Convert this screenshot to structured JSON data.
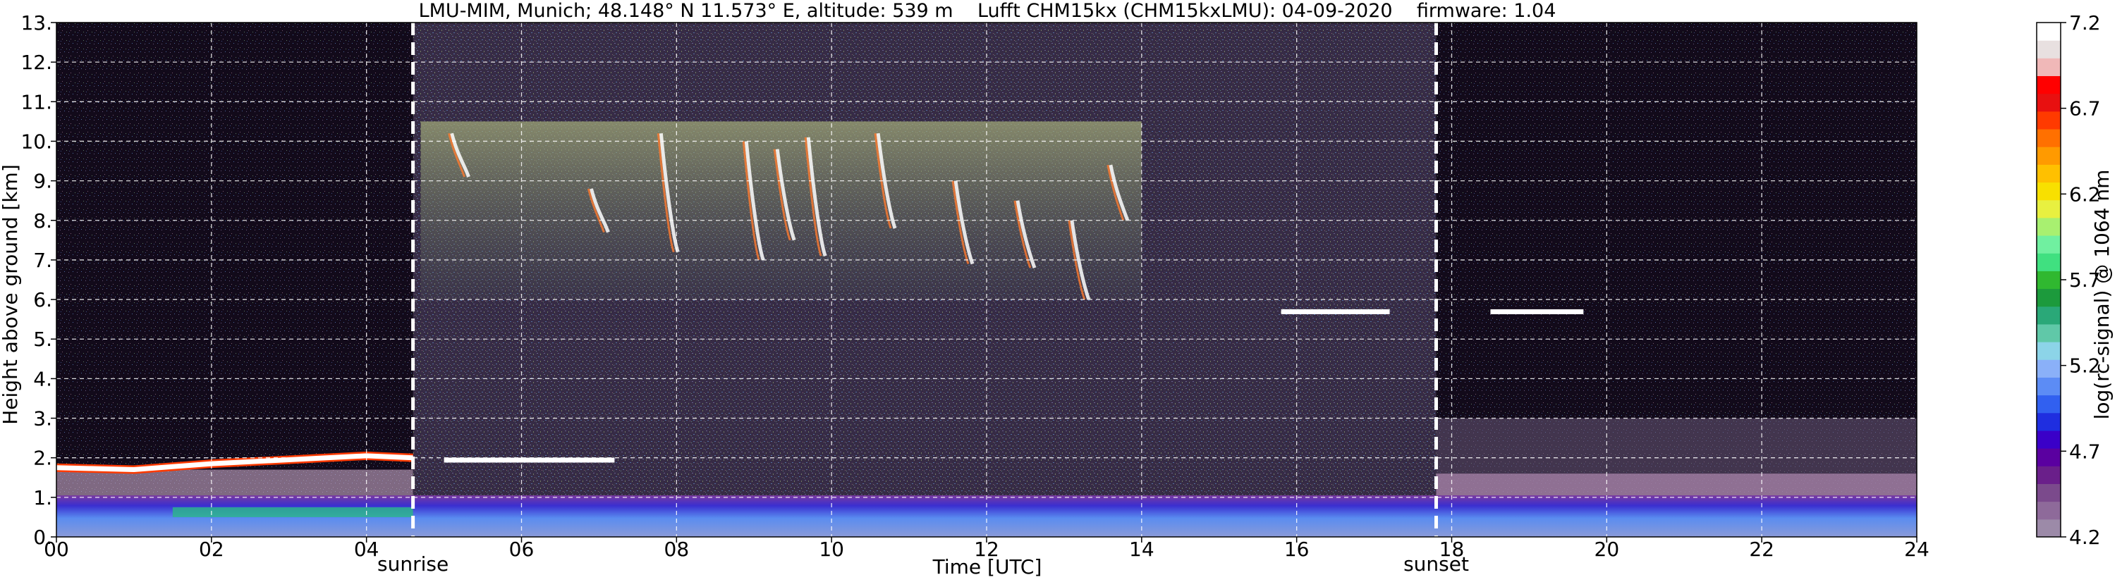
{
  "chart_data": {
    "type": "heatmap",
    "title": "LMU-MIM, Munich; 48.148° N 11.573° E, altitude: 539 m    Lufft CHM15kx (CHM15kxLMU): 04-09-2020    firmware: 1.04",
    "xlabel": "Time [UTC]",
    "ylabel": "Height above ground [km]",
    "xlim": [
      0,
      24
    ],
    "ylim": [
      0,
      13
    ],
    "x_ticks": [
      0,
      2,
      4,
      6,
      8,
      10,
      12,
      14,
      16,
      18,
      20,
      22,
      24
    ],
    "x_tick_labels": [
      "00",
      "02",
      "04",
      "06",
      "08",
      "10",
      "12",
      "14",
      "16",
      "18",
      "20",
      "22",
      "24"
    ],
    "y_ticks": [
      0,
      1,
      2,
      3,
      4,
      5,
      6,
      7,
      8,
      9,
      10,
      11,
      12,
      13
    ],
    "y_tick_labels": [
      "0.",
      "1.",
      "2.",
      "3.",
      "4.",
      "5.",
      "6.",
      "7.",
      "8.",
      "9.",
      "10.",
      "11.",
      "12.",
      "13."
    ],
    "grid": true,
    "colorbar": {
      "label": "log(rc-signal) @ 1064 nm",
      "range": [
        4.2,
        7.2
      ],
      "ticks": [
        4.2,
        4.7,
        5.2,
        5.7,
        6.2,
        6.7,
        7.2
      ],
      "tick_labels": [
        "4.2",
        "4.7",
        "5.2",
        "5.7",
        "6.2",
        "6.7",
        "7.2"
      ],
      "colors": [
        "#9c8aa8",
        "#8e6a9a",
        "#7b4a8c",
        "#6a1f8a",
        "#5a00a0",
        "#3a00c8",
        "#1f2ee0",
        "#3160f0",
        "#5c8cf5",
        "#8ab0f8",
        "#8cd4e8",
        "#60c8a8",
        "#2aa878",
        "#1c9a3c",
        "#30b830",
        "#40e080",
        "#70f0a0",
        "#a8f070",
        "#e8f040",
        "#f8e000",
        "#ffc000",
        "#ff9a00",
        "#ff7000",
        "#ff3a00",
        "#e81010",
        "#ff0000",
        "#f0b8b8",
        "#e8e0e0",
        "#ffffff"
      ]
    },
    "vertical_markers": [
      {
        "label": "sunrise",
        "x": 4.6
      },
      {
        "label": "sunset",
        "x": 17.8
      }
    ],
    "features": [
      {
        "kind": "boundary_layer_cloud_top",
        "points": [
          [
            0,
            1.75
          ],
          [
            1,
            1.7
          ],
          [
            2,
            1.85
          ],
          [
            3,
            1.95
          ],
          [
            4,
            2.05
          ],
          [
            4.6,
            2.0
          ]
        ]
      },
      {
        "kind": "cloud_layer",
        "x_range": [
          5.0,
          7.2
        ],
        "height": 1.95
      },
      {
        "kind": "cirrus_region",
        "x_range": [
          4.7,
          14.0
        ],
        "height_range": [
          6.0,
          10.5
        ]
      },
      {
        "kind": "cloud_layer",
        "x_range": [
          15.8,
          17.2
        ],
        "height": 5.7
      },
      {
        "kind": "cloud_layer",
        "x_range": [
          18.5,
          19.7
        ],
        "height": 5.7
      }
    ]
  }
}
